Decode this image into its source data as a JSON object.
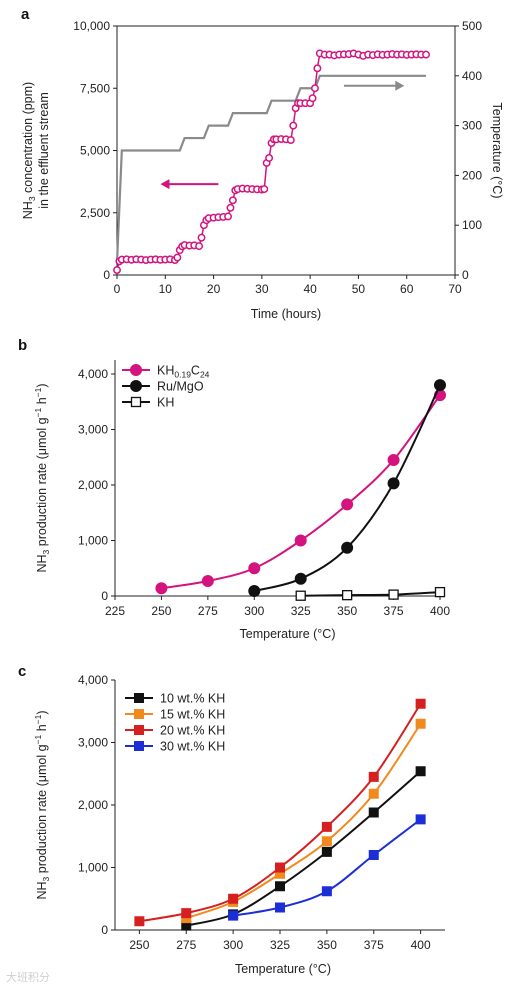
{
  "watermark": "大班积分",
  "chart_data": [
    {
      "panel": "a",
      "type": "line",
      "xlabel": "Time (hours)",
      "ylabel_left": [
        "NH",
        "3",
        " concentration (ppm)",
        "in the effluent stream"
      ],
      "ylabel_right": "Temperature (°C)",
      "xlim": [
        0,
        70
      ],
      "ylim_left": [
        0,
        10000
      ],
      "ylim_right": [
        0,
        500
      ],
      "xticks": [
        "0",
        "10",
        "20",
        "30",
        "40",
        "50",
        "60",
        "70"
      ],
      "yticks_left": [
        "0",
        "2,500",
        "5,000",
        "7,500",
        "10,000"
      ],
      "yticks_right": [
        "0",
        "100",
        "200",
        "300",
        "400",
        "500"
      ],
      "colors": {
        "nh3": "#d4137f",
        "temperature": "#8a8a8a"
      },
      "series": [
        {
          "key": "nh3",
          "axis": "left",
          "x": [
            0,
            0.5,
            1,
            2,
            3,
            4,
            5,
            6,
            7,
            8,
            9,
            10,
            11,
            12,
            12.5,
            13,
            13.5,
            14,
            15,
            16,
            17,
            17.5,
            18,
            18.5,
            19,
            20,
            21,
            22,
            23,
            23.5,
            24,
            24.5,
            25,
            26,
            27,
            28,
            29,
            30,
            30.5,
            31,
            31.5,
            32,
            32.5,
            33,
            34,
            35,
            36,
            36.5,
            37,
            37.5,
            38,
            39,
            40,
            40.5,
            41,
            41.5,
            42,
            43,
            44,
            45,
            46,
            47,
            48,
            49,
            50,
            51,
            52,
            53,
            54,
            55,
            56,
            57,
            58,
            59,
            60,
            61,
            62,
            63,
            64
          ],
          "y": [
            200,
            550,
            620,
            630,
            610,
            630,
            620,
            600,
            620,
            630,
            610,
            620,
            630,
            600,
            700,
            1000,
            1150,
            1200,
            1180,
            1190,
            1160,
            1500,
            2000,
            2200,
            2280,
            2300,
            2320,
            2330,
            2350,
            2700,
            3000,
            3400,
            3450,
            3470,
            3460,
            3450,
            3440,
            3430,
            3450,
            4500,
            4700,
            5300,
            5450,
            5450,
            5460,
            5450,
            5420,
            6000,
            6700,
            6900,
            6900,
            6900,
            6900,
            7100,
            7500,
            8300,
            8900,
            8850,
            8850,
            8820,
            8850,
            8860,
            8870,
            8900,
            8850,
            8800,
            8850,
            8830,
            8860,
            8840,
            8850,
            8870,
            8850,
            8860,
            8840,
            8850,
            8860,
            8850,
            8850
          ]
        },
        {
          "key": "temperature",
          "axis": "right",
          "x": [
            0,
            1,
            13,
            14,
            18,
            19,
            23,
            24,
            31,
            32,
            37,
            38,
            41,
            42,
            64
          ],
          "y": [
            25,
            250,
            250,
            275,
            275,
            300,
            300,
            325,
            325,
            350,
            350,
            375,
            375,
            400,
            400
          ]
        }
      ]
    },
    {
      "panel": "b",
      "type": "line",
      "xlabel": "Temperature (°C)",
      "ylabel": [
        "NH",
        "3",
        " production rate (μmol g",
        "−1",
        " h",
        "−1",
        ")"
      ],
      "xlim": [
        225,
        400
      ],
      "ylim": [
        0,
        4000
      ],
      "xticks": [
        "225",
        "250",
        "275",
        "300",
        "325",
        "350",
        "375",
        "400"
      ],
      "yticks": [
        "0",
        "1,000",
        "2,000",
        "3,000",
        "4,000"
      ],
      "series": [
        {
          "name": [
            "KH",
            "0.19",
            "C",
            "24"
          ],
          "marker": "circle",
          "color": "#d4137f",
          "fill": "#d4137f",
          "x": [
            250,
            275,
            300,
            325,
            350,
            375,
            400
          ],
          "y": [
            140,
            270,
            500,
            1000,
            1650,
            2450,
            3620
          ]
        },
        {
          "name": [
            "Ru/MgO"
          ],
          "marker": "circle",
          "color": "#111111",
          "fill": "#111111",
          "x": [
            300,
            325,
            350,
            375,
            400
          ],
          "y": [
            90,
            310,
            870,
            2030,
            3800
          ]
        },
        {
          "name": [
            "KH"
          ],
          "marker": "square-open",
          "color": "#111111",
          "fill": "#ffffff",
          "x": [
            325,
            350,
            375,
            400
          ],
          "y": [
            5,
            15,
            25,
            70
          ]
        }
      ]
    },
    {
      "panel": "c",
      "type": "line",
      "xlabel": "Temperature (°C)",
      "ylabel": [
        "NH",
        "3",
        " production rate (μmol g",
        "−1",
        " h",
        "−1",
        ")"
      ],
      "xlim": [
        237,
        413
      ],
      "ylim": [
        0,
        4000
      ],
      "xticks": [
        "250",
        "275",
        "300",
        "325",
        "350",
        "375",
        "400"
      ],
      "yticks": [
        "0",
        "1,000",
        "2,000",
        "3,000",
        "4,000"
      ],
      "series": [
        {
          "name": [
            "10 wt.% KH"
          ],
          "marker": "square",
          "color": "#111111",
          "fill": "#111111",
          "x": [
            275,
            300,
            325,
            350,
            375,
            400
          ],
          "y": [
            70,
            250,
            700,
            1250,
            1880,
            2540
          ]
        },
        {
          "name": [
            "15 wt.% KH"
          ],
          "marker": "square",
          "color": "#f08a1c",
          "fill": "#f08a1c",
          "x": [
            275,
            300,
            325,
            350,
            375,
            400
          ],
          "y": [
            190,
            450,
            900,
            1420,
            2180,
            3300
          ]
        },
        {
          "name": [
            "20 wt.% KH"
          ],
          "marker": "square",
          "color": "#d62020",
          "fill": "#d62020",
          "x": [
            250,
            275,
            300,
            325,
            350,
            375,
            400
          ],
          "y": [
            140,
            270,
            500,
            1000,
            1650,
            2450,
            3620
          ]
        },
        {
          "name": [
            "30 wt.% KH"
          ],
          "marker": "square",
          "color": "#1c2fd6",
          "fill": "#1c2fd6",
          "x": [
            300,
            325,
            350,
            375,
            400
          ],
          "y": [
            230,
            360,
            620,
            1200,
            1770
          ]
        }
      ]
    }
  ]
}
